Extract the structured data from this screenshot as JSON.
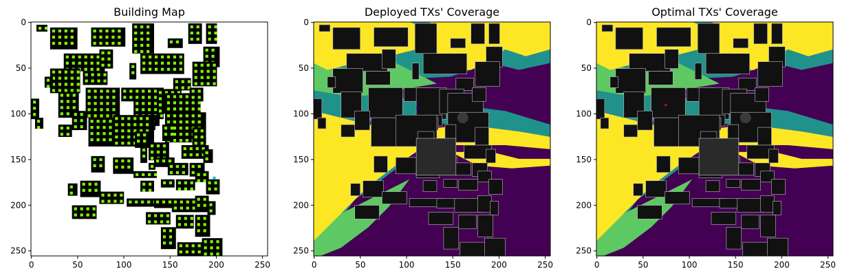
{
  "chart_data": [
    {
      "type": "heatmap",
      "title": "Building Map",
      "xlim": [
        0,
        255
      ],
      "ylim": [
        255,
        0
      ],
      "xticks": [
        0,
        50,
        100,
        150,
        200,
        250
      ],
      "yticks": [
        0,
        50,
        100,
        150,
        200,
        250
      ],
      "colors": {
        "background": "#ffffff",
        "building": "#000000",
        "marker": "#7cfc00",
        "tx": "#00bfff"
      },
      "buildings": [
        [
          8,
          4,
          16,
          10
        ],
        [
          28,
          8,
          40,
          32
        ],
        [
          88,
          8,
          50,
          28
        ],
        [
          148,
          2,
          32,
          44
        ],
        [
          230,
          2,
          20,
          30
        ],
        [
          256,
          2,
          16,
          30
        ],
        [
          200,
          24,
          22,
          14
        ],
        [
          252,
          36,
          24,
          30
        ],
        [
          48,
          46,
          60,
          26
        ],
        [
          100,
          40,
          20,
          28
        ],
        [
          160,
          46,
          64,
          30
        ],
        [
          236,
          58,
          36,
          36
        ],
        [
          28,
          68,
          44,
          36
        ],
        [
          76,
          72,
          36,
          20
        ],
        [
          144,
          60,
          10,
          24
        ],
        [
          208,
          82,
          26,
          18
        ],
        [
          20,
          80,
          12,
          16
        ],
        [
          40,
          102,
          30,
          38
        ],
        [
          80,
          96,
          50,
          44
        ],
        [
          132,
          96,
          40,
          20
        ],
        [
          150,
          96,
          44,
          46
        ],
        [
          184,
          98,
          36,
          36
        ],
        [
          196,
          104,
          52,
          30
        ],
        [
          232,
          96,
          20,
          20
        ],
        [
          0,
          112,
          12,
          30
        ],
        [
          6,
          140,
          12,
          16
        ],
        [
          60,
          130,
          22,
          28
        ],
        [
          84,
          140,
          44,
          42
        ],
        [
          164,
          136,
          24,
          16
        ],
        [
          196,
          132,
          60,
          44
        ],
        [
          164,
          140,
          18,
          18
        ],
        [
          192,
          150,
          16,
          24
        ],
        [
          120,
          136,
          60,
          46
        ],
        [
          40,
          150,
          20,
          18
        ],
        [
          152,
          160,
          24,
          24
        ],
        [
          236,
          154,
          20,
          26
        ],
        [
          160,
          182,
          10,
          24
        ],
        [
          172,
          176,
          30,
          26
        ],
        [
          220,
          180,
          40,
          20
        ],
        [
          252,
          186,
          14,
          20
        ],
        [
          88,
          196,
          20,
          24
        ],
        [
          120,
          198,
          30,
          24
        ],
        [
          172,
          206,
          10,
          10
        ],
        [
          180,
          198,
          30,
          14
        ],
        [
          200,
          206,
          30,
          18
        ],
        [
          232,
          206,
          22,
          20
        ],
        [
          240,
          218,
          20,
          16
        ],
        [
          150,
          218,
          34,
          10
        ],
        [
          160,
          232,
          20,
          16
        ],
        [
          190,
          230,
          20,
          12
        ],
        [
          212,
          230,
          28,
          16
        ],
        [
          256,
          230,
          20,
          22
        ],
        [
          72,
          232,
          30,
          24
        ],
        [
          54,
          236,
          14,
          18
        ],
        [
          100,
          248,
          36,
          18
        ],
        [
          140,
          258,
          50,
          12
        ],
        [
          180,
          258,
          30,
          14
        ],
        [
          206,
          258,
          40,
          20
        ],
        [
          240,
          254,
          20,
          24
        ],
        [
          212,
          282,
          26,
          20
        ],
        [
          168,
          278,
          36,
          18
        ],
        [
          240,
          282,
          22,
          32
        ],
        [
          258,
          262,
          12,
          20
        ],
        [
          60,
          268,
          36,
          20
        ],
        [
          190,
          300,
          22,
          32
        ],
        [
          214,
          322,
          40,
          20
        ],
        [
          250,
          316,
          30,
          26
        ]
      ]
    },
    {
      "type": "heatmap",
      "title": "Deployed TXs' Coverage",
      "xlim": [
        0,
        255
      ],
      "ylim": [
        255,
        0
      ],
      "xticks": [
        0,
        50,
        100,
        150,
        200,
        250
      ],
      "yticks": [
        0,
        50,
        100,
        150,
        200,
        250
      ],
      "colormap": [
        "#440154",
        "#21918c",
        "#5ec962",
        "#fde725"
      ],
      "building_color": "#111111"
    },
    {
      "type": "heatmap",
      "title": "Optimal TXs' Coverage",
      "xlim": [
        0,
        255
      ],
      "ylim": [
        255,
        0
      ],
      "xticks": [
        0,
        50,
        100,
        150,
        200,
        250
      ],
      "yticks": [
        0,
        50,
        100,
        150,
        200,
        250
      ],
      "colormap": [
        "#440154",
        "#21918c",
        "#5ec962",
        "#fde725"
      ],
      "building_color": "#111111"
    }
  ]
}
